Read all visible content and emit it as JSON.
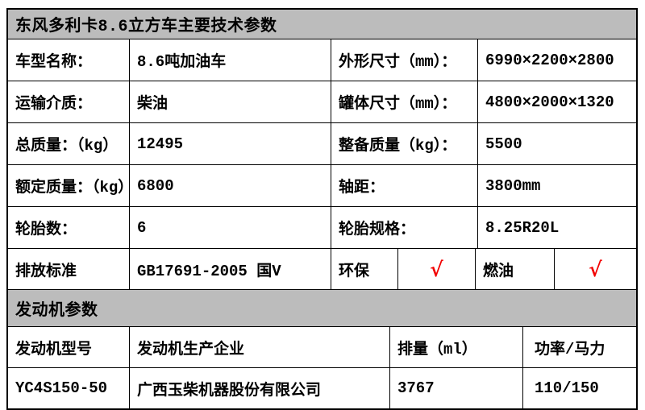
{
  "colors": {
    "header_bg": "#bcbcbc",
    "border": "#000000",
    "check": "#f20000",
    "text": "#000000",
    "page_bg": "#ffffff"
  },
  "title": "东风多利卡8.6立方车主要技术参数",
  "spec_rows": [
    {
      "c1": "车型名称：",
      "c2": "8.6吨加油车",
      "c3": "外形尺寸（mm）：",
      "c4": "6990×2200×2800"
    },
    {
      "c1": "运输介质：",
      "c2": "柴油",
      "c3": "罐体尺寸（mm）：",
      "c4": "4800×2000×1320"
    },
    {
      "c1": "总质量：（kg）",
      "c2": "12495",
      "c3": "整备质量（kg）：",
      "c4": "5500"
    },
    {
      "c1": "额定质量：（kg）",
      "c2": "6800",
      "c3": "轴距：",
      "c4": "3800mm"
    },
    {
      "c1": "轮胎数：",
      "c2": "6",
      "c3": "轮胎规格：",
      "c4": "8.25R20L"
    }
  ],
  "emission": {
    "label": "排放标准",
    "standard": "GB17691-2005 国V",
    "env_label": "环保",
    "env_check": "√",
    "fuel_label": "燃油",
    "fuel_check": "√"
  },
  "engine": {
    "section_title": "发动机参数",
    "col_model": "发动机型号",
    "col_manufacturer": "发动机生产企业",
    "col_displacement": "排量（ml）",
    "col_power": "功率/马力",
    "model": "YC4S150-50",
    "manufacturer": "广西玉柴机器股份有限公司",
    "displacement": "3767",
    "power": "110/150"
  }
}
